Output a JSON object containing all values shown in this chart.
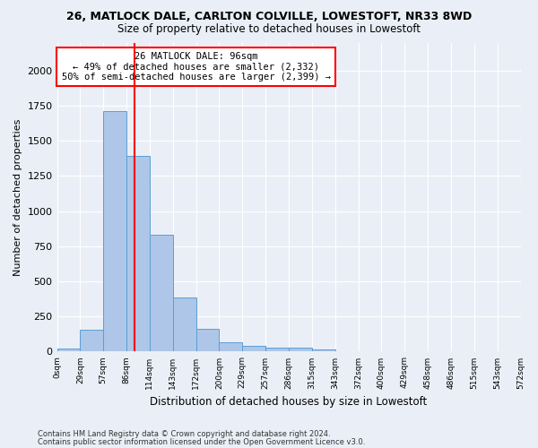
{
  "title1": "26, MATLOCK DALE, CARLTON COLVILLE, LOWESTOFT, NR33 8WD",
  "title2": "Size of property relative to detached houses in Lowestoft",
  "xlabel": "Distribution of detached houses by size in Lowestoft",
  "ylabel": "Number of detached properties",
  "footer1": "Contains HM Land Registry data © Crown copyright and database right 2024.",
  "footer2": "Contains public sector information licensed under the Open Government Licence v3.0.",
  "annotation_title": "26 MATLOCK DALE: 96sqm",
  "annotation_line1": "← 49% of detached houses are smaller (2,332)",
  "annotation_line2": "50% of semi-detached houses are larger (2,399) →",
  "bar_values": [
    20,
    155,
    1710,
    1390,
    835,
    385,
    165,
    65,
    38,
    30,
    30,
    18,
    0,
    0,
    0,
    0,
    0,
    0,
    0,
    0
  ],
  "bin_labels": [
    "0sqm",
    "29sqm",
    "57sqm",
    "86sqm",
    "114sqm",
    "143sqm",
    "172sqm",
    "200sqm",
    "229sqm",
    "257sqm",
    "286sqm",
    "315sqm",
    "343sqm",
    "372sqm",
    "400sqm",
    "429sqm",
    "458sqm",
    "486sqm",
    "515sqm",
    "543sqm",
    "572sqm"
  ],
  "bar_color": "#aec6e8",
  "bar_edge_color": "#5a9fd4",
  "vline_color": "red",
  "ylim": [
    0,
    2200
  ],
  "bg_color": "#eaeff7",
  "plot_bg_color": "#eaeff7",
  "grid_color": "#ffffff"
}
